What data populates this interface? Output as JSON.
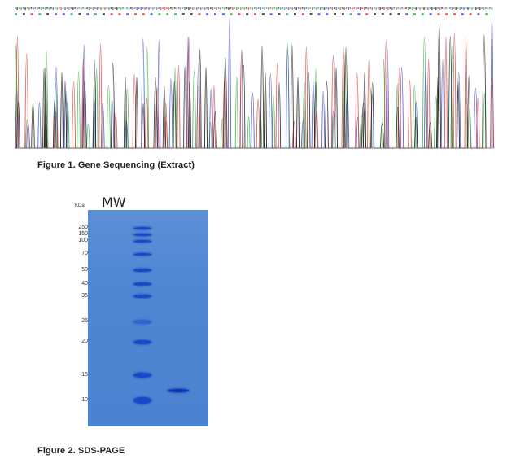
{
  "figure1": {
    "caption": "Figure 1. Gene Sequencing (Extract)",
    "trace_colors": {
      "A": "#3fb24a",
      "C": "#4a52c8",
      "G": "#222222",
      "T": "#d64545"
    }
  },
  "figure2": {
    "caption": "Figure 2. SDS-PAGE",
    "unit_label": "KDa",
    "lane_label": "MW",
    "gel_color": "#4f86d2",
    "band_color": "#1749c8",
    "markers": [
      {
        "label": "250",
        "kda": 250
      },
      {
        "label": "150",
        "kda": 150
      },
      {
        "label": "100",
        "kda": 100
      },
      {
        "label": "70",
        "kda": 70
      },
      {
        "label": "50",
        "kda": 50
      },
      {
        "label": "40",
        "kda": 40
      },
      {
        "label": "35",
        "kda": 35
      },
      {
        "label": "25",
        "kda": 25
      },
      {
        "label": "20",
        "kda": 20
      },
      {
        "label": "15",
        "kda": 15
      },
      {
        "label": "10",
        "kda": 10
      }
    ],
    "sample_band_kda": 15
  }
}
